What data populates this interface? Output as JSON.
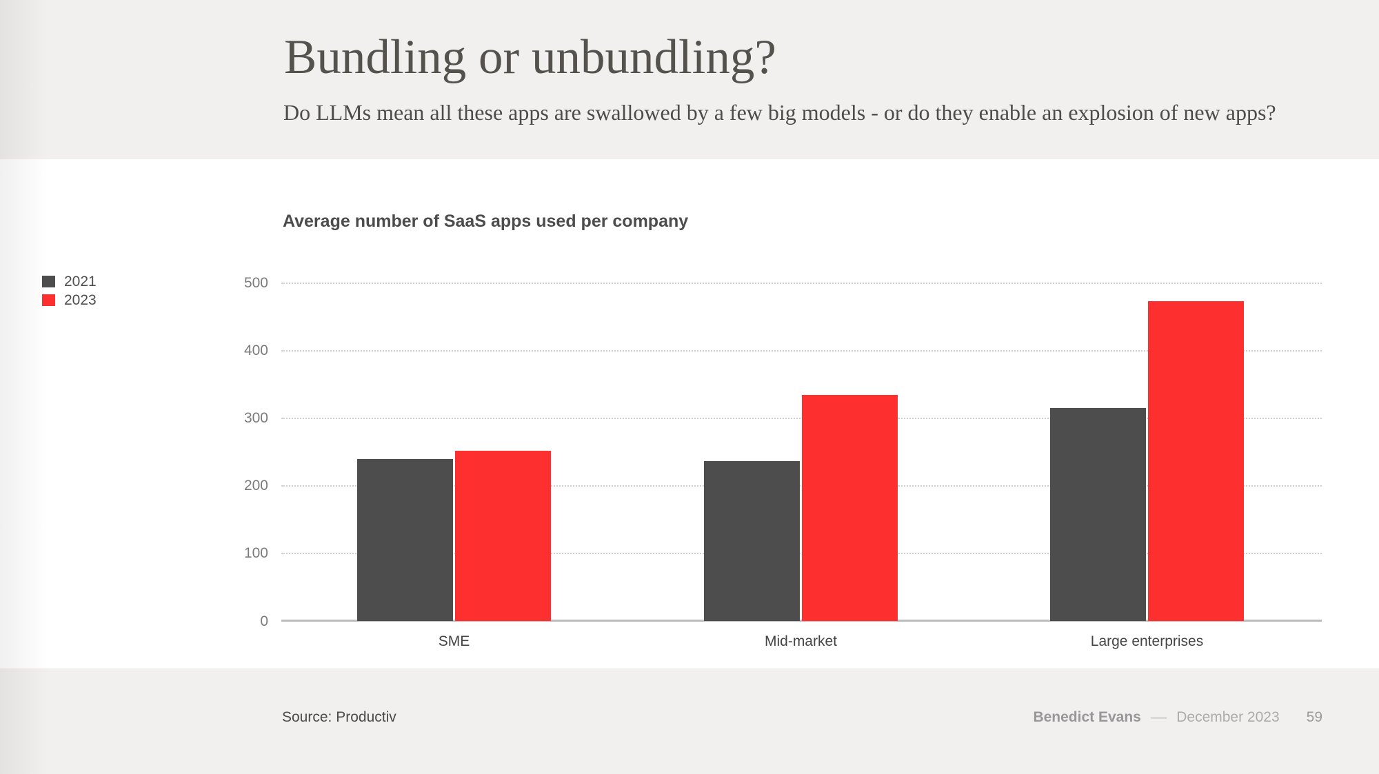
{
  "slide": {
    "title": "Bundling or unbundling?",
    "subtitle": "Do LLMs mean all these apps are swallowed by a few big models - or do they enable an explosion of new apps?"
  },
  "chart_data": {
    "type": "bar",
    "title": "Average number of SaaS apps used per company",
    "categories": [
      "SME",
      "Mid-market",
      "Large enterprises"
    ],
    "series": [
      {
        "name": "2021",
        "color": "#4d4d4d",
        "values": [
          240,
          237,
          315
        ]
      },
      {
        "name": "2023",
        "color": "#fd2f2f",
        "values": [
          252,
          334,
          473
        ]
      }
    ],
    "ylim": [
      0,
      500
    ],
    "yticks": [
      0,
      100,
      200,
      300,
      400,
      500
    ],
    "grid": "horizontal-dotted",
    "legend_position": "left"
  },
  "colors": {
    "band": "#f1f0ee",
    "accent_red": "#fd2f2f",
    "bar_gray": "#4d4d4d",
    "axis_line": "#bcbcbc",
    "gridline": "#cdcdcd"
  },
  "footer": {
    "source": "Source: Productiv",
    "author": "Benedict Evans",
    "separator": "––",
    "date": "December 2023",
    "page": "59"
  }
}
